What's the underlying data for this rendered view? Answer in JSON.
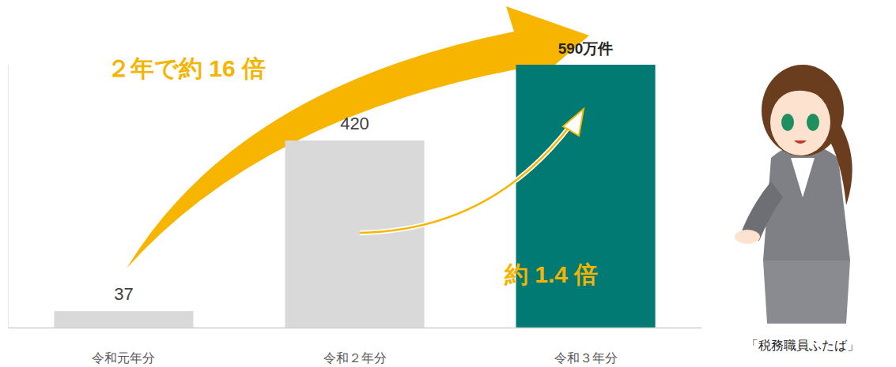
{
  "chart_data": {
    "type": "bar",
    "categories": [
      "令和元年分",
      "令和２年分",
      "令和３年分"
    ],
    "values": [
      37,
      420,
      590
    ],
    "value_labels": [
      "37",
      "420",
      "590万件"
    ],
    "colors": [
      "#d9d9d9",
      "#d9d9d9",
      "#007a73"
    ],
    "ylim": [
      0,
      590
    ],
    "data_labels": true,
    "tick_labels": "x",
    "annotations": [
      "２年で約 16 倍",
      "約 1.4 倍",
      "「税務職員ふたば」"
    ]
  }
}
